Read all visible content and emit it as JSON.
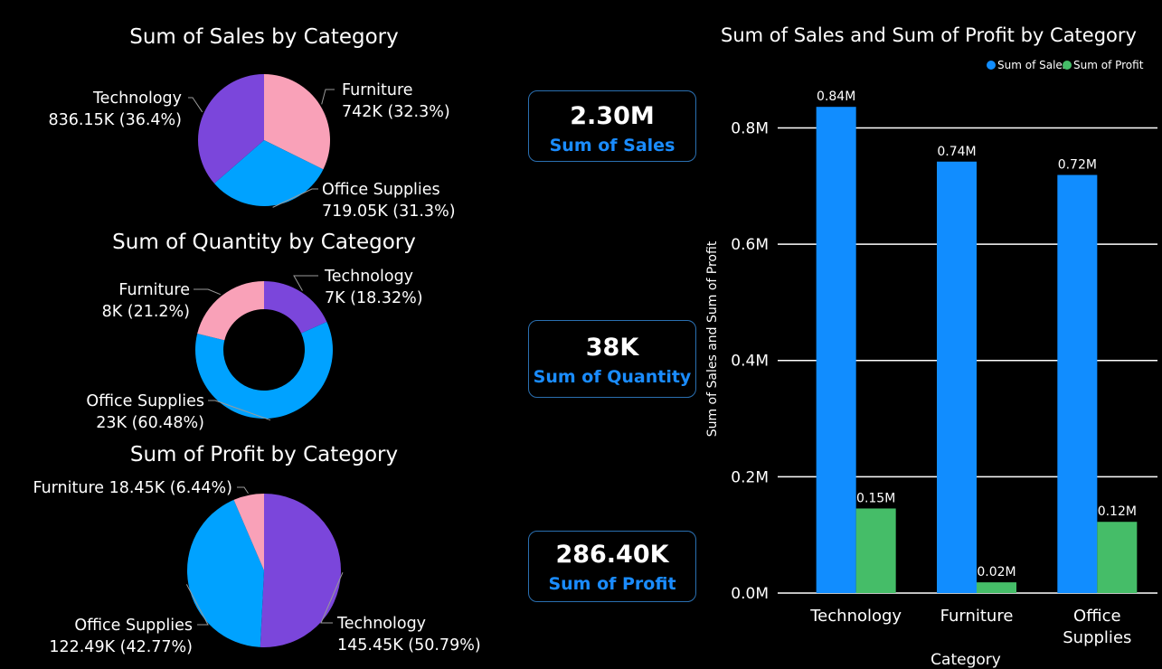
{
  "kpis": [
    {
      "value": "2.30M",
      "label": "Sum of Sales"
    },
    {
      "value": "38K",
      "label": "Sum of Quantity"
    },
    {
      "value": "286.40K",
      "label": "Sum of Profit"
    }
  ],
  "colors": {
    "furniture": "#f9a1b8",
    "office_supplies": "#00a2ff",
    "technology": "#7b46db",
    "sales": "#118dff",
    "profit": "#45bd68",
    "kpi_label": "#1a8cff"
  },
  "chart_data": [
    {
      "type": "pie",
      "title": "Sum of Sales by Category",
      "slices": [
        {
          "name": "Furniture",
          "value": 742000,
          "label": "Furniture",
          "value_label": "742K (32.3%)"
        },
        {
          "name": "Office Supplies",
          "value": 719050,
          "label": "Office Supplies",
          "value_label": "719.05K (31.3%)"
        },
        {
          "name": "Technology",
          "value": 836150,
          "label": "Technology",
          "value_label": "836.15K (36.4%)"
        }
      ]
    },
    {
      "type": "pie",
      "donut": true,
      "title": "Sum of Quantity by Category",
      "slices": [
        {
          "name": "Technology",
          "value": 18.32,
          "label": "Technology",
          "value_label": "7K (18.32%)"
        },
        {
          "name": "Office Supplies",
          "value": 60.48,
          "label": "Office Supplies",
          "value_label": "23K (60.48%)"
        },
        {
          "name": "Furniture",
          "value": 21.2,
          "label": "Furniture",
          "value_label": "8K (21.2%)"
        }
      ]
    },
    {
      "type": "pie",
      "title": "Sum of Profit by Category",
      "slices": [
        {
          "name": "Technology",
          "value": 145450,
          "label": "Technology",
          "value_label": "145.45K (50.79%)"
        },
        {
          "name": "Office Supplies",
          "value": 122490,
          "label": "Office Supplies",
          "value_label": "122.49K (42.77%)"
        },
        {
          "name": "Furniture",
          "value": 18450,
          "label": "Furniture 18.45K (6.44%)",
          "value_label": ""
        }
      ]
    },
    {
      "type": "bar",
      "title": "Sum of Sales and Sum of Profit by Category",
      "categories": [
        "Technology",
        "Furniture",
        "Office Supplies"
      ],
      "series": [
        {
          "name": "Sum of Sales",
          "values": [
            836150,
            742000,
            719050
          ],
          "labels": [
            "0.84M",
            "0.74M",
            "0.72M"
          ]
        },
        {
          "name": "Sum of Profit",
          "values": [
            145450,
            18450,
            122490
          ],
          "labels": [
            "0.15M",
            "0.02M",
            "0.12M"
          ]
        }
      ],
      "xlabel": "Category",
      "ylabel": "Sum of Sales and Sum of Profit",
      "ylim": [
        0,
        880000
      ],
      "yticks": [
        {
          "value": 0,
          "label": "0.0M"
        },
        {
          "value": 200000,
          "label": "0.2M"
        },
        {
          "value": 400000,
          "label": "0.4M"
        },
        {
          "value": 600000,
          "label": "0.6M"
        },
        {
          "value": 800000,
          "label": "0.8M"
        }
      ],
      "legend": "top-right",
      "grid": true
    }
  ]
}
